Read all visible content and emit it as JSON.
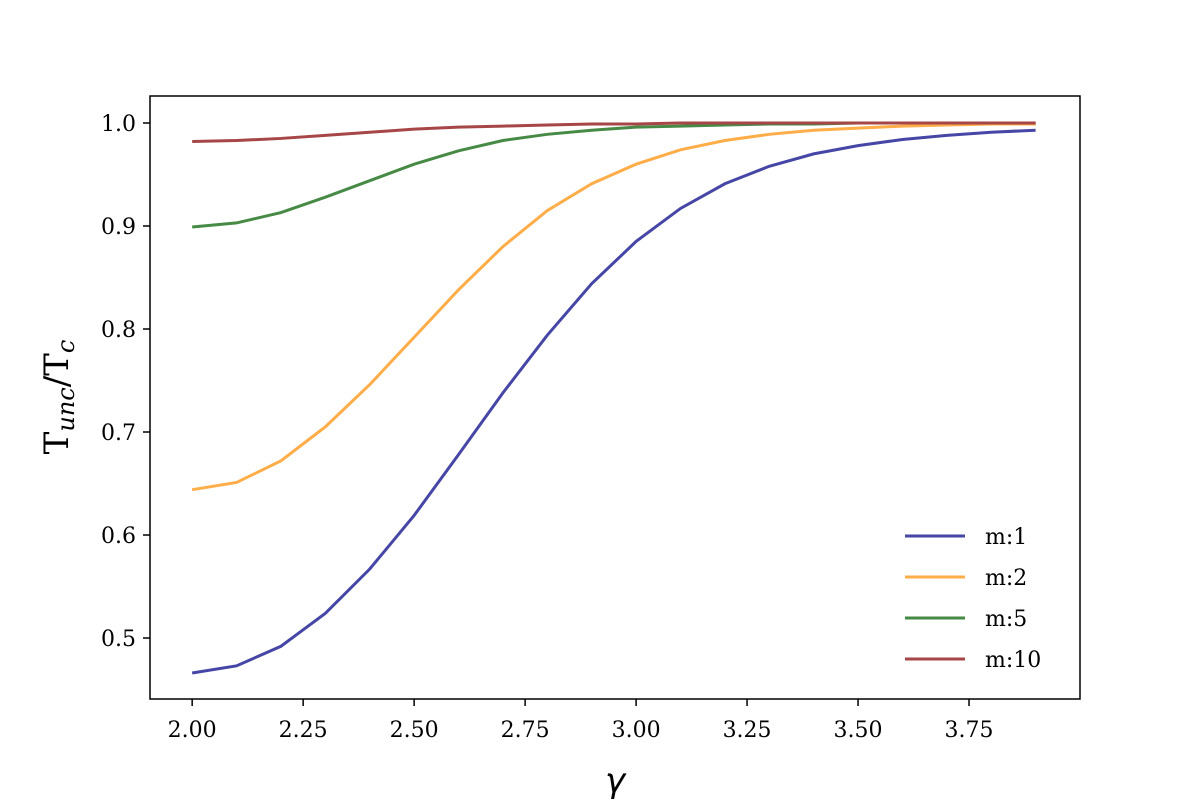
{
  "chart_data": {
    "type": "line",
    "xlabel": "γ",
    "ylabel": [
      "T",
      "unc",
      "/T",
      "c"
    ],
    "x": [
      2.0,
      2.1,
      2.2,
      2.3,
      2.4,
      2.5,
      2.6,
      2.7,
      2.8,
      2.9,
      3.0,
      3.1,
      3.2,
      3.3,
      3.4,
      3.5,
      3.6,
      3.7,
      3.8,
      3.9
    ],
    "series": [
      {
        "name": "m:1",
        "color": "#4646a6",
        "values": [
          0.466,
          0.473,
          0.492,
          0.524,
          0.567,
          0.619,
          0.678,
          0.738,
          0.794,
          0.844,
          0.885,
          0.917,
          0.941,
          0.958,
          0.97,
          0.978,
          0.984,
          0.988,
          0.991,
          0.993
        ]
      },
      {
        "name": "m:2",
        "color": "#ffad48",
        "values": [
          0.644,
          0.651,
          0.672,
          0.705,
          0.746,
          0.792,
          0.838,
          0.88,
          0.915,
          0.941,
          0.96,
          0.974,
          0.983,
          0.989,
          0.993,
          0.995,
          0.997,
          0.998,
          0.999,
          0.999
        ]
      },
      {
        "name": "m:5",
        "color": "#468a46",
        "values": [
          0.899,
          0.903,
          0.913,
          0.928,
          0.944,
          0.96,
          0.973,
          0.983,
          0.989,
          0.993,
          0.996,
          0.997,
          0.998,
          0.999,
          0.999,
          1.0,
          1.0,
          1.0,
          1.0,
          1.0
        ]
      },
      {
        "name": "m:10",
        "color": "#a64646",
        "values": [
          0.982,
          0.983,
          0.985,
          0.988,
          0.991,
          0.994,
          0.996,
          0.997,
          0.998,
          0.999,
          0.999,
          1.0,
          1.0,
          1.0,
          1.0,
          1.0,
          1.0,
          1.0,
          1.0,
          1.0
        ]
      }
    ],
    "xlim": [
      1.905,
      4.0
    ],
    "ylim": [
      0.4408,
      1.0262
    ],
    "xticks": [
      {
        "value": 2.0,
        "label": "2.00"
      },
      {
        "value": 2.25,
        "label": "2.25"
      },
      {
        "value": 2.5,
        "label": "2.50"
      },
      {
        "value": 2.75,
        "label": "2.75"
      },
      {
        "value": 3.0,
        "label": "3.00"
      },
      {
        "value": 3.25,
        "label": "3.25"
      },
      {
        "value": 3.5,
        "label": "3.50"
      },
      {
        "value": 3.75,
        "label": "3.75"
      }
    ],
    "yticks": [
      0.5,
      0.6,
      0.7,
      0.8,
      0.9,
      {
        "value": 1.0,
        "label": "1.0"
      }
    ],
    "legend": "lower right",
    "grid": false
  }
}
